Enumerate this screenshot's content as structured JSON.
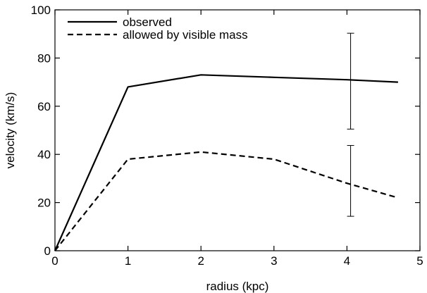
{
  "chart_data": {
    "type": "line",
    "title": "",
    "xlabel": "radius (kpc)",
    "ylabel": "velocity (km/s)",
    "xlim": [
      0,
      5
    ],
    "ylim": [
      0,
      100
    ],
    "xticks": [
      0,
      1,
      2,
      3,
      4,
      5
    ],
    "yticks": [
      0,
      20,
      40,
      60,
      80,
      100
    ],
    "grid": false,
    "legend_position": "top-left",
    "series": [
      {
        "name": "observed",
        "style": "solid",
        "color": "#000000",
        "x": [
          0,
          1,
          2,
          3,
          4,
          4.7
        ],
        "y": [
          0,
          68,
          73,
          72,
          71,
          70
        ],
        "error_bar": {
          "x": 4.05,
          "low": 50.5,
          "high": 90.3
        }
      },
      {
        "name": "allowed by visible mass",
        "style": "dashed",
        "color": "#000000",
        "x": [
          0,
          1,
          2,
          3,
          4,
          4.7
        ],
        "y": [
          0,
          38,
          41,
          38,
          28,
          22
        ],
        "error_bar": {
          "x": 4.05,
          "low": 14.3,
          "high": 43.7
        }
      }
    ]
  }
}
